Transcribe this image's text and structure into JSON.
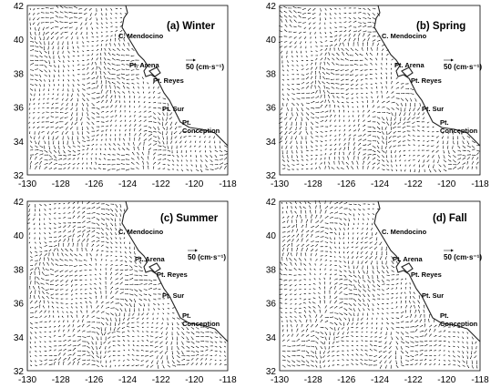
{
  "figure": {
    "x_ticks": [
      "-130",
      "-128",
      "-126",
      "-124",
      "-122",
      "-120",
      "-118"
    ],
    "y_ticks": [
      "42",
      "40",
      "38",
      "36",
      "34",
      "32"
    ],
    "lon_range": [
      -130,
      -118
    ],
    "lat_range": [
      32,
      42
    ],
    "scale_label": "50 (cm·s⁻¹)",
    "scale_speed_cm_s": 50,
    "places": {
      "mendocino": "C. Mendocino",
      "arena": "Pt. Arena",
      "reyes": "Pt. Reyes",
      "sur": "Pt. Sur",
      "conception_1": "Pt.",
      "conception_2": "Conception"
    },
    "panels": [
      {
        "title": "(a) Winter",
        "season": "winter"
      },
      {
        "title": "(b) Spring",
        "season": "spring"
      },
      {
        "title": "(c) Summer",
        "season": "summer"
      },
      {
        "title": "(d) Fall",
        "season": "fall"
      }
    ],
    "vector_color": "#000000",
    "coast_color": "#222222"
  }
}
